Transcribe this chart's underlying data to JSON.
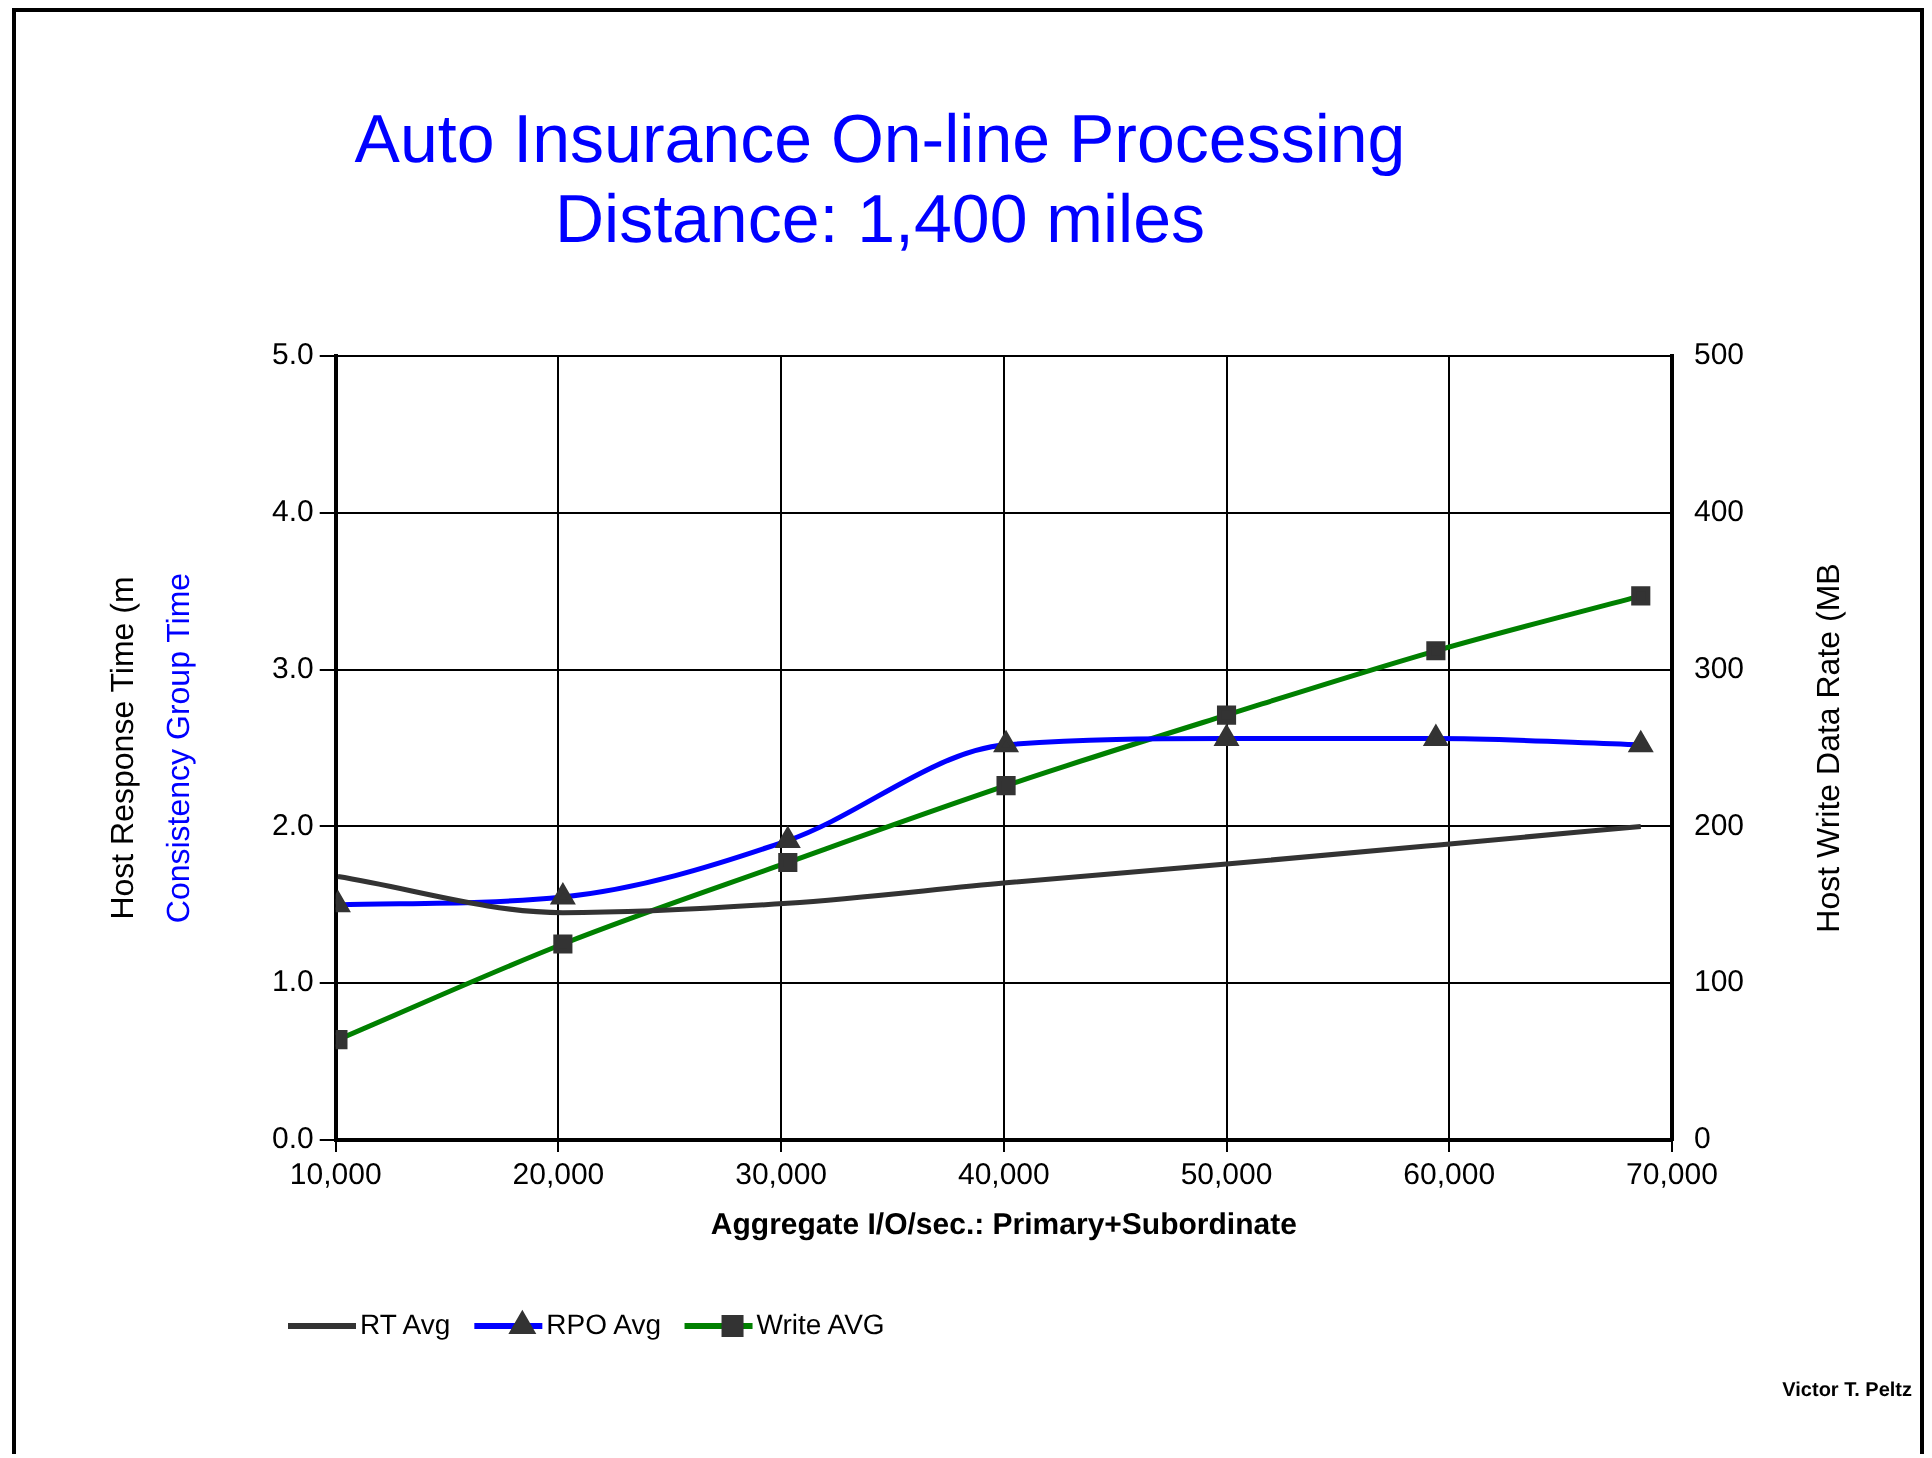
{
  "chart_data": {
    "type": "line",
    "title": "Auto Insurance On-line Processing",
    "subtitle": "Distance: 1,400 miles",
    "xlabel": "Aggregate I/O/sec.: Primary+Subordinate",
    "ylabel": "Host Response Time (m\nConsistency Group Time",
    "y2label": "Host Write Data Rate (MB",
    "x": [
      10100,
      20200,
      30300,
      40100,
      50000,
      59400,
      68600
    ],
    "series": [
      {
        "name": "RT Avg",
        "color": "#333333",
        "marker": "none",
        "values": [
          1.68,
          1.45,
          1.51,
          1.64,
          1.76,
          1.88,
          2.0
        ]
      },
      {
        "name": "RPO Avg",
        "color": "#0000ff",
        "marker": "triangle",
        "values": [
          1.5,
          1.55,
          1.91,
          2.52,
          2.56,
          2.56,
          2.52
        ]
      },
      {
        "name": "Write AVG",
        "color": "#008000",
        "marker": "square",
        "axis": "y2",
        "values": [
          64,
          125,
          177,
          226,
          271,
          312,
          347
        ]
      }
    ],
    "xlim": [
      10000,
      70000
    ],
    "xticks": [
      {
        "value": 10000,
        "label": "10,000"
      },
      {
        "value": 20000,
        "label": "20,000"
      },
      {
        "value": 30000,
        "label": "30,000"
      },
      {
        "value": 40000,
        "label": "40,000"
      },
      {
        "value": 50000,
        "label": "50,000"
      },
      {
        "value": 60000,
        "label": "60,000"
      },
      {
        "value": 70000,
        "label": "70,000"
      }
    ],
    "ylim": [
      0,
      5
    ],
    "yticks": [
      {
        "value": 0,
        "label": "0.0"
      },
      {
        "value": 1,
        "label": "1.0"
      },
      {
        "value": 2,
        "label": "2.0"
      },
      {
        "value": 3,
        "label": "3.0"
      },
      {
        "value": 4,
        "label": "4.0"
      },
      {
        "value": 5,
        "label": "5.0"
      }
    ],
    "y2lim": [
      0,
      500
    ],
    "y2ticks": [
      0,
      100,
      200,
      300,
      400,
      500
    ],
    "grid": true,
    "legend": "bottom left",
    "line_style": "solid",
    "annotations": [
      "Victor T. Peltz"
    ]
  }
}
